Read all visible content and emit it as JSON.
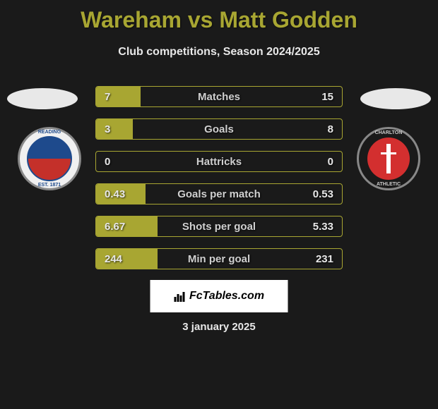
{
  "title": "Wareham vs Matt Godden",
  "subtitle": "Club competitions, Season 2024/2025",
  "colors": {
    "background": "#1a1a1a",
    "accent": "#a8a632",
    "text_light": "#e8e8e8",
    "text_muted": "#d0d0d0",
    "reading_blue": "#1e4a8c",
    "reading_red": "#c4302a",
    "charlton_red": "#d32f2f",
    "white": "#ffffff"
  },
  "clubs": {
    "left": {
      "name": "Reading",
      "badge_text_top": "READING",
      "badge_text_bottom": "EST. 1871"
    },
    "right": {
      "name": "Charlton",
      "badge_text_top": "CHARLTON",
      "badge_text_bottom": "ATHLETIC"
    }
  },
  "stats": [
    {
      "label": "Matches",
      "left_value": "7",
      "right_value": "15",
      "left_fill_pct": 18,
      "right_fill_pct": 0
    },
    {
      "label": "Goals",
      "left_value": "3",
      "right_value": "8",
      "left_fill_pct": 15,
      "right_fill_pct": 0
    },
    {
      "label": "Hattricks",
      "left_value": "0",
      "right_value": "0",
      "left_fill_pct": 0,
      "right_fill_pct": 0
    },
    {
      "label": "Goals per match",
      "left_value": "0.43",
      "right_value": "0.53",
      "left_fill_pct": 20,
      "right_fill_pct": 0
    },
    {
      "label": "Shots per goal",
      "left_value": "6.67",
      "right_value": "5.33",
      "left_fill_pct": 25,
      "right_fill_pct": 0
    },
    {
      "label": "Min per goal",
      "left_value": "244",
      "right_value": "231",
      "left_fill_pct": 25,
      "right_fill_pct": 0
    }
  ],
  "footer": {
    "brand": "FcTables.com",
    "date": "3 january 2025"
  }
}
